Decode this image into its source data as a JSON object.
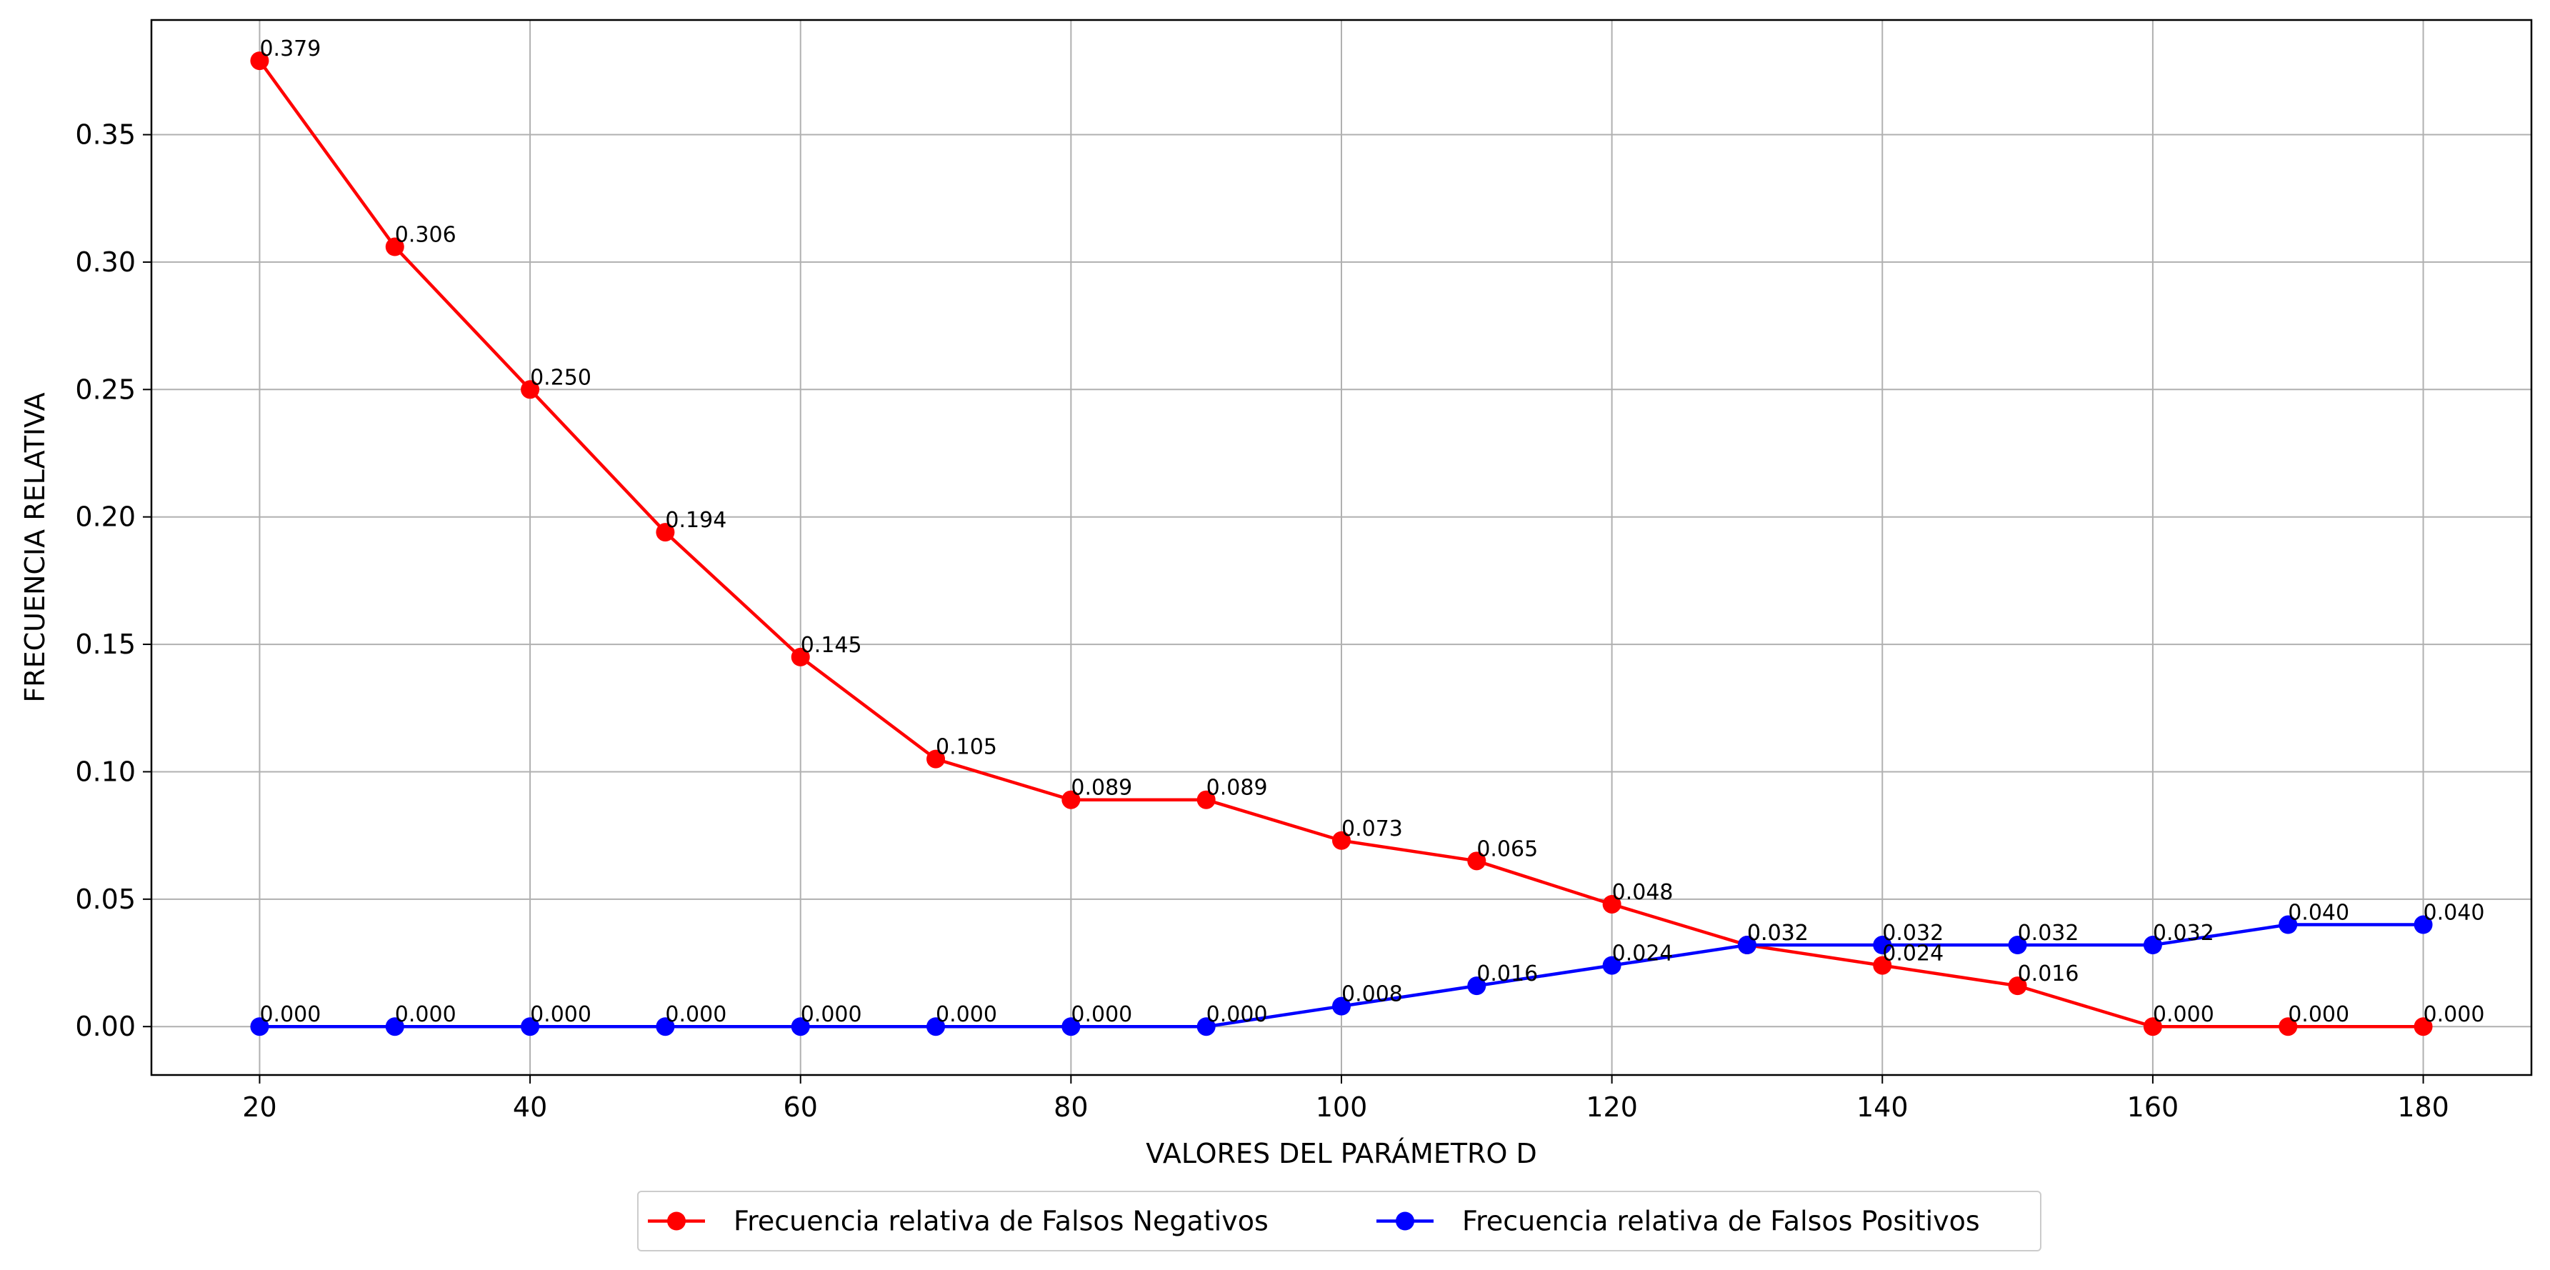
{
  "chart_data": {
    "type": "line",
    "xlabel": "VALORES DEL PARÁMETRO D",
    "ylabel": "FRECUENCIA RELATIVA",
    "xlim": [
      12,
      188
    ],
    "ylim": [
      -0.019,
      0.395
    ],
    "xticks": [
      20,
      40,
      60,
      80,
      100,
      120,
      140,
      160,
      180
    ],
    "xtick_labels": [
      "20",
      "40",
      "60",
      "80",
      "100",
      "120",
      "140",
      "160",
      "180"
    ],
    "yticks": [
      0.0,
      0.05,
      0.1,
      0.15,
      0.2,
      0.25,
      0.3,
      0.35
    ],
    "ytick_labels": [
      "0.00",
      "0.05",
      "0.10",
      "0.15",
      "0.20",
      "0.25",
      "0.30",
      "0.35"
    ],
    "grid": true,
    "legend_position": "bottom-center",
    "x": [
      20,
      30,
      40,
      50,
      60,
      70,
      80,
      90,
      100,
      110,
      120,
      130,
      140,
      150,
      160,
      170,
      180
    ],
    "series": [
      {
        "name": "Frecuencia relativa de Falsos Negativos",
        "color": "#ff0000",
        "marker": "circle",
        "values": [
          0.379,
          0.306,
          0.25,
          0.194,
          0.145,
          0.105,
          0.089,
          0.089,
          0.073,
          0.065,
          0.048,
          0.032,
          0.024,
          0.016,
          0.0,
          0.0,
          0.0
        ],
        "labels": [
          "0.379",
          "0.306",
          "0.250",
          "0.194",
          "0.145",
          "0.105",
          "0.089",
          "0.089",
          "0.073",
          "0.065",
          "0.048",
          "0.032",
          "0.024",
          "0.016",
          "0.000",
          "0.000",
          "0.000"
        ]
      },
      {
        "name": "Frecuencia relativa de Falsos Positivos",
        "color": "#0000ff",
        "marker": "circle",
        "values": [
          0.0,
          0.0,
          0.0,
          0.0,
          0.0,
          0.0,
          0.0,
          0.0,
          0.008,
          0.016,
          0.024,
          0.032,
          0.032,
          0.032,
          0.032,
          0.04,
          0.04
        ],
        "labels": [
          "0.000",
          "0.000",
          "0.000",
          "0.000",
          "0.000",
          "0.000",
          "0.000",
          "0.000",
          "0.008",
          "0.016",
          "0.024",
          "0.032",
          "0.032",
          "0.032",
          "0.032",
          "0.040",
          "0.040"
        ]
      }
    ],
    "colors": {
      "grid": "#b0b0b0",
      "axes": "#000000",
      "legend_border": "#cccccc"
    }
  }
}
